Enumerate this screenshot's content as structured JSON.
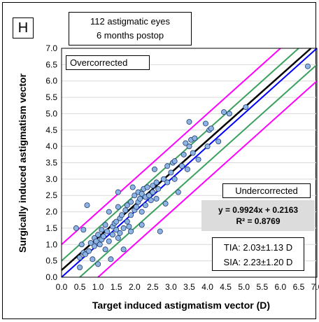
{
  "panel_label": "H",
  "chart_data": {
    "type": "scatter",
    "title_lines": [
      "112 astigmatic eyes",
      "6 months postop"
    ],
    "xlabel": "Target induced astigmatism vector (D)",
    "ylabel": "Surgically induced astigmatism vector",
    "xlim": [
      0,
      7
    ],
    "ylim": [
      0,
      7
    ],
    "xticks": [
      "0.0",
      "0.5",
      "1.0",
      "1.5",
      "2.0",
      "2.5",
      "3.0",
      "3.5",
      "4.0",
      "4.5",
      "5.0",
      "5.5",
      "6.0",
      "6.5",
      "7.0"
    ],
    "yticks": [
      "0.0",
      "0.5",
      "1.0",
      "1.5",
      "2.0",
      "2.5",
      "3.0",
      "3.5",
      "4.0",
      "4.5",
      "5.0",
      "5.5",
      "6.0",
      "6.5",
      "7.0"
    ],
    "grid": true,
    "annotations": {
      "overcorrected": "Overcorrected",
      "undercorrected": "Undercorrected",
      "equation": "y = 0.9924x + 0.2163",
      "r_squared": "R² = 0.8769",
      "tia": "TIA: 2.03±1.13 D",
      "sia": "SIA: 2.23±1.20 D"
    },
    "reference_lines": [
      {
        "role": "identity",
        "color": "#0000ff",
        "slope": 1,
        "intercept": 0
      },
      {
        "role": "regression",
        "color": "#000000",
        "slope": 0.9924,
        "intercept": 0.2163
      },
      {
        "role": "plus-0.5D",
        "color": "#3aa15c",
        "slope": 1,
        "intercept": 0.5
      },
      {
        "role": "minus-0.5D",
        "color": "#3aa15c",
        "slope": 1,
        "intercept": -0.5
      },
      {
        "role": "plus-1.0D",
        "color": "#ff00ff",
        "slope": 1,
        "intercept": 1.0
      },
      {
        "role": "minus-1.0D",
        "color": "#ff00ff",
        "slope": 1,
        "intercept": -1.0
      }
    ],
    "point_color": "#8db4e2",
    "points": [
      [
        0.4,
        1.5
      ],
      [
        0.5,
        0.6
      ],
      [
        0.5,
        0.3
      ],
      [
        0.55,
        1.0
      ],
      [
        0.6,
        1.45
      ],
      [
        0.6,
        0.75
      ],
      [
        0.65,
        0.7
      ],
      [
        0.7,
        2.2
      ],
      [
        0.75,
        0.8
      ],
      [
        0.8,
        1.05
      ],
      [
        0.85,
        0.55
      ],
      [
        0.9,
        1.2
      ],
      [
        0.9,
        0.95
      ],
      [
        0.95,
        1.1
      ],
      [
        1.0,
        1.3
      ],
      [
        1.0,
        0.4
      ],
      [
        1.05,
        1.0
      ],
      [
        1.1,
        1.45
      ],
      [
        1.1,
        1.15
      ],
      [
        1.15,
        1.25
      ],
      [
        1.2,
        1.6
      ],
      [
        1.2,
        0.85
      ],
      [
        1.25,
        1.4
      ],
      [
        1.3,
        2.0
      ],
      [
        1.3,
        1.1
      ],
      [
        1.35,
        0.55
      ],
      [
        1.4,
        1.55
      ],
      [
        1.4,
        1.3
      ],
      [
        1.45,
        1.65
      ],
      [
        1.5,
        1.7
      ],
      [
        1.5,
        1.45
      ],
      [
        1.55,
        2.6
      ],
      [
        1.55,
        2.15
      ],
      [
        1.55,
        1.2
      ],
      [
        1.6,
        1.8
      ],
      [
        1.6,
        1.35
      ],
      [
        1.65,
        1.9
      ],
      [
        1.7,
        1.5
      ],
      [
        1.7,
        0.85
      ],
      [
        1.75,
        2.05
      ],
      [
        1.8,
        2.2
      ],
      [
        1.8,
        1.7
      ],
      [
        1.85,
        1.55
      ],
      [
        1.9,
        2.3
      ],
      [
        1.9,
        1.9
      ],
      [
        1.9,
        1.4
      ],
      [
        1.95,
        2.75
      ],
      [
        2.0,
        2.5
      ],
      [
        2.0,
        2.05
      ],
      [
        2.05,
        2.15
      ],
      [
        2.1,
        2.6
      ],
      [
        2.1,
        2.3
      ],
      [
        2.15,
        2.4
      ],
      [
        2.2,
        2.55
      ],
      [
        2.2,
        2.0
      ],
      [
        2.2,
        1.6
      ],
      [
        2.25,
        2.7
      ],
      [
        2.3,
        2.45
      ],
      [
        2.3,
        2.2
      ],
      [
        2.35,
        2.75
      ],
      [
        2.4,
        2.5
      ],
      [
        2.45,
        2.35
      ],
      [
        2.5,
        2.8
      ],
      [
        2.5,
        2.6
      ],
      [
        2.55,
        3.3
      ],
      [
        2.6,
        2.9
      ],
      [
        2.6,
        2.4
      ],
      [
        2.65,
        2.7
      ],
      [
        2.7,
        1.4
      ],
      [
        2.8,
        3.0
      ],
      [
        2.85,
        2.25
      ],
      [
        2.9,
        3.4
      ],
      [
        2.9,
        2.9
      ],
      [
        3.0,
        3.2
      ],
      [
        3.05,
        3.5
      ],
      [
        3.1,
        3.55
      ],
      [
        3.1,
        3.0
      ],
      [
        3.2,
        2.6
      ],
      [
        3.3,
        3.4
      ],
      [
        3.35,
        3.75
      ],
      [
        3.4,
        4.1
      ],
      [
        3.45,
        3.3
      ],
      [
        3.5,
        4.0
      ],
      [
        3.5,
        4.75
      ],
      [
        3.55,
        4.2
      ],
      [
        3.6,
        3.8
      ],
      [
        3.65,
        4.25
      ],
      [
        3.75,
        3.6
      ],
      [
        3.95,
        4.7
      ],
      [
        4.0,
        4.0
      ],
      [
        4.05,
        4.5
      ],
      [
        4.1,
        4.55
      ],
      [
        4.3,
        4.15
      ],
      [
        4.45,
        5.05
      ],
      [
        4.6,
        5.0
      ],
      [
        5.05,
        5.2
      ],
      [
        6.75,
        6.45
      ]
    ]
  }
}
